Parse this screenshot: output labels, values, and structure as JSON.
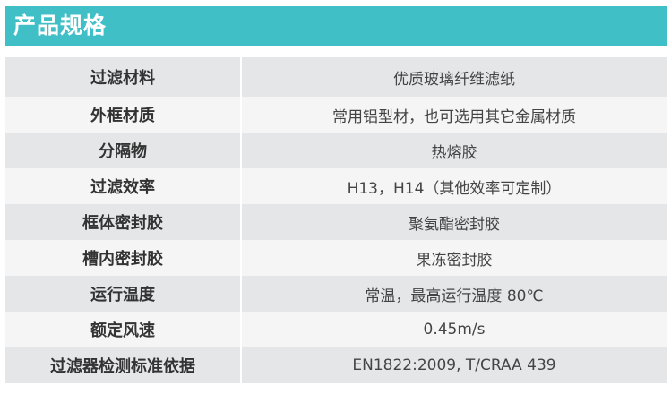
{
  "title": "产品规格",
  "colors": {
    "header": "#41bfc6",
    "row_dark": "#e5e6e8",
    "row_light": "#f5f5f5"
  },
  "rows": [
    {
      "label": "过滤材料",
      "value": "优质玻璃纤维滤纸"
    },
    {
      "label": "外框材质",
      "value": "常用铝型材，也可选用其它金属材质"
    },
    {
      "label": "分隔物",
      "value": "热熔胶"
    },
    {
      "label": "过滤效率",
      "value": "H13，H14（其他效率可定制）"
    },
    {
      "label": "框体密封胶",
      "value": "聚氨酯密封胶"
    },
    {
      "label": "槽内密封胶",
      "value": "果冻密封胶"
    },
    {
      "label": "运行温度",
      "value": "常温，最高运行温度 80℃"
    },
    {
      "label": "额定风速",
      "value": "0.45m/s"
    },
    {
      "label": "过滤器检测标准依据",
      "value": "EN1822:2009, T/CRAA 439"
    }
  ]
}
